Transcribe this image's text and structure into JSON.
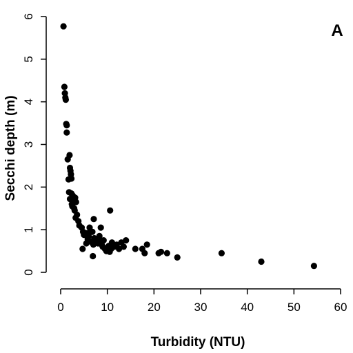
{
  "chart_data": {
    "type": "scatter",
    "panel_label": "A",
    "xlabel": "Turbidity (NTU)",
    "ylabel": "Secchi depth (m)",
    "xlim": [
      0,
      60
    ],
    "ylim": [
      0,
      6
    ],
    "xticks": [
      "0",
      "10",
      "20",
      "30",
      "40",
      "50",
      "60"
    ],
    "yticks": [
      "0",
      "1",
      "2",
      "3",
      "4",
      "5",
      "6"
    ],
    "grid": false,
    "marker_color": "#000000",
    "x": [
      0.6,
      0.8,
      0.9,
      1.0,
      1.1,
      1.2,
      1.3,
      1.3,
      1.5,
      1.9,
      2.0,
      2.1,
      2.2,
      2.3,
      1.7,
      1.8,
      2.3,
      2.6,
      2.0,
      2.8,
      3.1,
      3.3,
      2.4,
      2.5,
      2.9,
      3.0,
      3.5,
      3.2,
      3.8,
      4.0,
      4.5,
      4.8,
      5.0,
      5.4,
      5.8,
      6.0,
      6.2,
      6.5,
      6.8,
      7.0,
      7.2,
      7.5,
      7.8,
      8.0,
      8.3,
      8.5,
      8.8,
      9.0,
      9.2,
      9.5,
      9.8,
      10.0,
      10.3,
      10.5,
      10.8,
      11.0,
      11.5,
      12.0,
      12.5,
      13.0,
      13.5,
      14.0,
      5.5,
      6.3,
      7.1,
      8.6,
      10.6,
      16.0,
      17.5,
      18.0,
      18.5,
      21.0,
      21.5,
      22.8,
      25.0,
      34.5,
      43.0,
      54.3,
      4.7,
      6.9
    ],
    "y": [
      5.77,
      4.35,
      4.2,
      4.1,
      4.05,
      3.48,
      3.45,
      3.28,
      2.65,
      2.75,
      2.45,
      2.38,
      2.3,
      2.2,
      2.18,
      1.88,
      1.85,
      1.8,
      1.72,
      1.67,
      1.75,
      1.65,
      1.6,
      1.55,
      1.5,
      1.45,
      1.35,
      1.28,
      1.2,
      1.1,
      1.05,
      0.95,
      0.88,
      0.92,
      0.78,
      0.85,
      1.05,
      0.72,
      0.95,
      0.65,
      0.8,
      0.75,
      0.7,
      0.68,
      0.85,
      0.72,
      0.65,
      0.6,
      0.75,
      0.55,
      0.5,
      0.58,
      0.62,
      0.48,
      0.55,
      0.7,
      0.6,
      0.65,
      0.55,
      0.7,
      0.6,
      0.75,
      0.68,
      0.95,
      1.25,
      1.05,
      1.45,
      0.55,
      0.55,
      0.45,
      0.65,
      0.45,
      0.48,
      0.45,
      0.35,
      0.45,
      0.25,
      0.15,
      0.55,
      0.38
    ]
  }
}
